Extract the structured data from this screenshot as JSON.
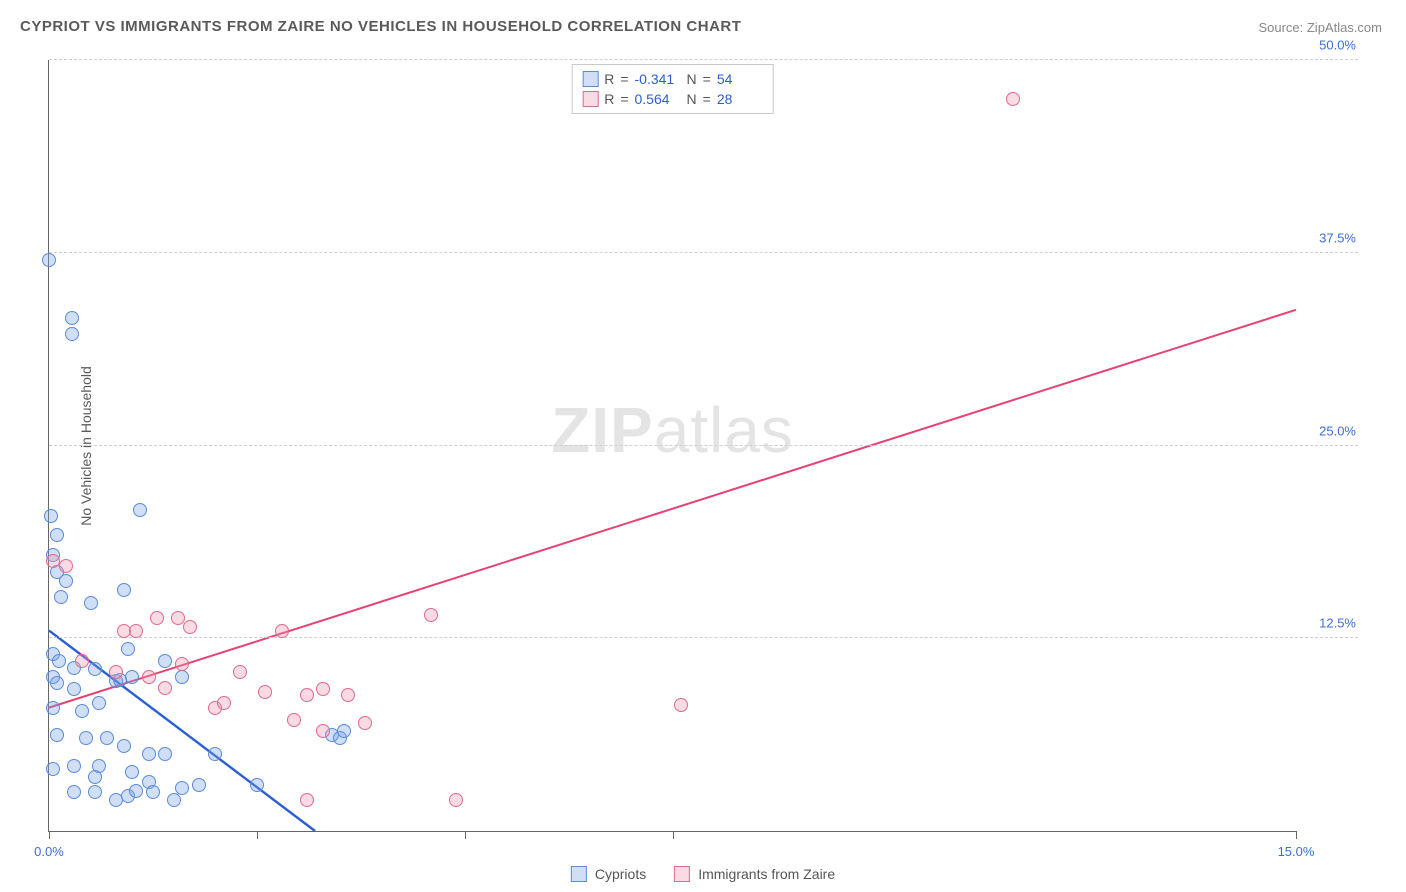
{
  "title": "CYPRIOT VS IMMIGRANTS FROM ZAIRE NO VEHICLES IN HOUSEHOLD CORRELATION CHART",
  "source_label": "Source: ",
  "source_name": "ZipAtlas.com",
  "ylabel": "No Vehicles in Household",
  "watermark_a": "ZIP",
  "watermark_b": "atlas",
  "chart": {
    "type": "scatter_with_trend",
    "x_min": 0.0,
    "x_max": 15.0,
    "y_min": 0.0,
    "y_max": 50.0,
    "y_ticks": [
      12.5,
      25.0,
      37.5,
      50.0
    ],
    "y_tick_labels": [
      "12.5%",
      "25.0%",
      "37.5%",
      "50.0%"
    ],
    "x_ticks_major": [
      0.0,
      15.0
    ],
    "x_tick_labels": [
      "0.0%",
      "15.0%"
    ],
    "x_ticks_minor": [
      2.5,
      5.0,
      7.5
    ],
    "grid_color": "#d6d6d6",
    "axis_color": "#666666",
    "background": "#ffffff",
    "point_radius": 7,
    "point_stroke_width": 1.3,
    "series": [
      {
        "name": "Cypriots",
        "fill": "rgba(120,160,230,0.35)",
        "stroke": "#5a8cd8",
        "r_value": "-0.341",
        "n_value": "54",
        "trend": {
          "x1": 0.0,
          "y1": 13.0,
          "x2": 3.2,
          "y2": 0.0,
          "color": "#2a5fd0",
          "width": 2.4
        },
        "points": [
          [
            0.0,
            37.0
          ],
          [
            0.28,
            33.3
          ],
          [
            0.28,
            32.2
          ],
          [
            0.02,
            20.4
          ],
          [
            0.1,
            19.2
          ],
          [
            0.05,
            17.9
          ],
          [
            1.1,
            20.8
          ],
          [
            0.1,
            16.8
          ],
          [
            0.2,
            16.2
          ],
          [
            0.15,
            15.2
          ],
          [
            0.5,
            14.8
          ],
          [
            0.9,
            15.6
          ],
          [
            0.05,
            11.5
          ],
          [
            0.12,
            11.0
          ],
          [
            0.3,
            10.6
          ],
          [
            0.55,
            10.5
          ],
          [
            0.95,
            11.8
          ],
          [
            0.05,
            10.0
          ],
          [
            0.1,
            9.6
          ],
          [
            0.3,
            9.2
          ],
          [
            0.05,
            8.0
          ],
          [
            0.4,
            7.8
          ],
          [
            0.6,
            8.3
          ],
          [
            0.8,
            9.7
          ],
          [
            0.85,
            9.8
          ],
          [
            1.0,
            10.0
          ],
          [
            1.4,
            11.0
          ],
          [
            1.6,
            10.0
          ],
          [
            0.1,
            6.2
          ],
          [
            0.45,
            6.0
          ],
          [
            0.7,
            6.0
          ],
          [
            0.9,
            5.5
          ],
          [
            1.2,
            5.0
          ],
          [
            1.4,
            5.0
          ],
          [
            0.05,
            4.0
          ],
          [
            0.3,
            4.2
          ],
          [
            0.55,
            3.5
          ],
          [
            0.6,
            4.2
          ],
          [
            1.0,
            3.8
          ],
          [
            1.2,
            3.2
          ],
          [
            0.3,
            2.5
          ],
          [
            0.55,
            2.5
          ],
          [
            0.8,
            2.0
          ],
          [
            0.95,
            2.3
          ],
          [
            1.05,
            2.6
          ],
          [
            1.25,
            2.5
          ],
          [
            1.5,
            2.0
          ],
          [
            1.6,
            2.8
          ],
          [
            1.8,
            3.0
          ],
          [
            2.0,
            5.0
          ],
          [
            2.5,
            3.0
          ],
          [
            3.4,
            6.2
          ],
          [
            3.5,
            6.0
          ],
          [
            3.55,
            6.5
          ]
        ]
      },
      {
        "name": "Immigrants from Zaire",
        "fill": "rgba(240,150,175,0.35)",
        "stroke": "#e06a8d",
        "r_value": "0.564",
        "n_value": "28",
        "trend": {
          "x1": 0.0,
          "y1": 8.0,
          "x2": 15.0,
          "y2": 33.8,
          "color": "#e74272",
          "width": 2
        },
        "points": [
          [
            0.05,
            17.5
          ],
          [
            0.2,
            17.2
          ],
          [
            0.9,
            13.0
          ],
          [
            1.05,
            13.0
          ],
          [
            1.3,
            13.8
          ],
          [
            1.55,
            13.8
          ],
          [
            1.7,
            13.2
          ],
          [
            0.4,
            11.0
          ],
          [
            0.8,
            10.3
          ],
          [
            1.2,
            10.0
          ],
          [
            1.4,
            9.3
          ],
          [
            1.6,
            10.8
          ],
          [
            2.0,
            8.0
          ],
          [
            2.1,
            8.3
          ],
          [
            2.3,
            10.3
          ],
          [
            2.6,
            9.0
          ],
          [
            2.8,
            13.0
          ],
          [
            2.95,
            7.2
          ],
          [
            3.1,
            8.8
          ],
          [
            3.3,
            9.2
          ],
          [
            3.3,
            6.5
          ],
          [
            3.6,
            8.8
          ],
          [
            3.8,
            7.0
          ],
          [
            3.1,
            2.0
          ],
          [
            4.6,
            14.0
          ],
          [
            4.9,
            2.0
          ],
          [
            7.6,
            8.2
          ],
          [
            11.6,
            47.5
          ]
        ]
      }
    ]
  },
  "legend": {
    "series1_label": "Cypriots",
    "series2_label": "Immigrants from Zaire"
  },
  "stats_labels": {
    "r": "R",
    "n": "N",
    "eq": " = "
  }
}
